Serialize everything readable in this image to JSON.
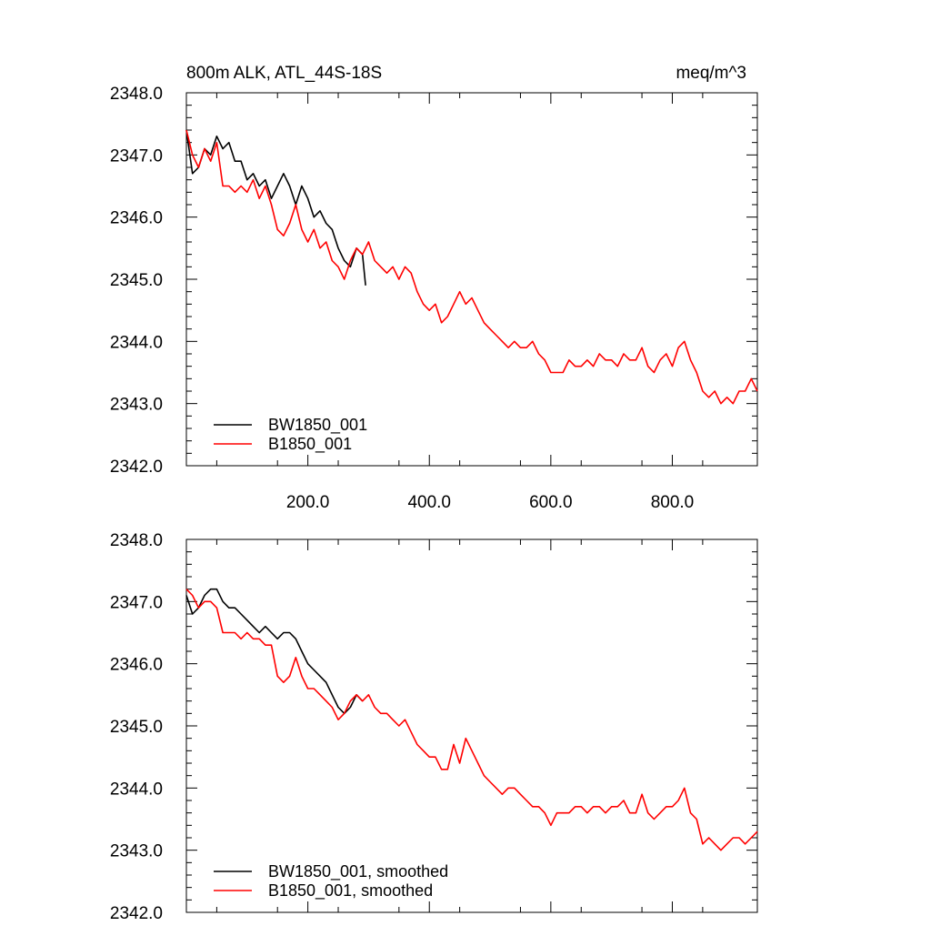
{
  "chart_data": [
    {
      "type": "line",
      "title": "800m ALK, ATL_44S-18S",
      "units": "meq/m^3",
      "xlim": [
        0,
        940
      ],
      "ylim": [
        2342.0,
        2348.0
      ],
      "x_ticks": [
        200,
        400,
        600,
        800
      ],
      "x_tick_labels": [
        "200.0",
        "400.0",
        "600.0",
        "800.0"
      ],
      "y_ticks": [
        2342,
        2343,
        2344,
        2345,
        2346,
        2347,
        2348
      ],
      "y_tick_labels": [
        "2342.0",
        "2343.0",
        "2344.0",
        "2345.0",
        "2346.0",
        "2347.0",
        "2348.0"
      ],
      "grid": false,
      "legend_position": "bottom-left",
      "series": [
        {
          "name": "BW1850_001",
          "color": "#000000",
          "x": [
            0,
            10,
            20,
            30,
            40,
            50,
            60,
            70,
            80,
            90,
            100,
            110,
            120,
            130,
            140,
            150,
            160,
            170,
            180,
            190,
            200,
            210,
            220,
            230,
            240,
            250,
            260,
            270,
            280,
            290,
            295
          ],
          "y": [
            2347.4,
            2346.7,
            2346.8,
            2347.1,
            2347.0,
            2347.3,
            2347.1,
            2347.2,
            2346.9,
            2346.9,
            2346.6,
            2346.7,
            2346.5,
            2346.6,
            2346.3,
            2346.5,
            2346.7,
            2346.5,
            2346.2,
            2346.5,
            2346.3,
            2346.0,
            2346.1,
            2345.9,
            2345.8,
            2345.5,
            2345.3,
            2345.2,
            2345.5,
            2345.4,
            2344.9
          ]
        },
        {
          "name": "B1850_001",
          "color": "#ff0000",
          "x": [
            0,
            10,
            20,
            30,
            40,
            50,
            60,
            70,
            80,
            90,
            100,
            110,
            120,
            130,
            140,
            150,
            160,
            170,
            180,
            190,
            200,
            210,
            220,
            230,
            240,
            250,
            260,
            270,
            280,
            290,
            300,
            310,
            320,
            330,
            340,
            350,
            360,
            370,
            380,
            390,
            400,
            410,
            420,
            430,
            440,
            450,
            460,
            470,
            480,
            490,
            500,
            510,
            520,
            530,
            540,
            550,
            560,
            570,
            580,
            590,
            600,
            610,
            620,
            630,
            640,
            650,
            660,
            670,
            680,
            690,
            700,
            710,
            720,
            730,
            740,
            750,
            760,
            770,
            780,
            790,
            800,
            810,
            820,
            830,
            840,
            850,
            860,
            870,
            880,
            890,
            900,
            910,
            920,
            930,
            940
          ],
          "y": [
            2347.4,
            2347.0,
            2346.8,
            2347.1,
            2346.9,
            2347.2,
            2346.5,
            2346.5,
            2346.4,
            2346.5,
            2346.4,
            2346.6,
            2346.3,
            2346.5,
            2346.2,
            2345.8,
            2345.7,
            2345.9,
            2346.2,
            2345.8,
            2345.6,
            2345.8,
            2345.5,
            2345.6,
            2345.3,
            2345.2,
            2345.0,
            2345.3,
            2345.5,
            2345.4,
            2345.6,
            2345.3,
            2345.2,
            2345.1,
            2345.2,
            2345.0,
            2345.2,
            2345.1,
            2344.8,
            2344.6,
            2344.5,
            2344.6,
            2344.3,
            2344.4,
            2344.6,
            2344.8,
            2344.6,
            2344.7,
            2344.5,
            2344.3,
            2344.2,
            2344.1,
            2344.0,
            2343.9,
            2344.0,
            2343.9,
            2343.9,
            2344.0,
            2343.8,
            2343.7,
            2343.5,
            2343.5,
            2343.5,
            2343.7,
            2343.6,
            2343.6,
            2343.7,
            2343.6,
            2343.8,
            2343.7,
            2343.7,
            2343.6,
            2343.8,
            2343.7,
            2343.7,
            2343.9,
            2343.6,
            2343.5,
            2343.7,
            2343.8,
            2343.6,
            2343.9,
            2344.0,
            2343.7,
            2343.5,
            2343.2,
            2343.1,
            2343.2,
            2343.0,
            2343.1,
            2343.0,
            2343.2,
            2343.2,
            2343.4,
            2343.2
          ]
        }
      ]
    },
    {
      "type": "line",
      "title": "",
      "xlim": [
        0,
        940
      ],
      "ylim": [
        2342.0,
        2348.0
      ],
      "x_ticks": [
        200,
        400,
        600,
        800
      ],
      "x_tick_labels": [],
      "y_ticks": [
        2342,
        2343,
        2344,
        2345,
        2346,
        2347,
        2348
      ],
      "y_tick_labels": [
        "2342.0",
        "2343.0",
        "2344.0",
        "2345.0",
        "2346.0",
        "2347.0",
        "2348.0"
      ],
      "grid": false,
      "legend_position": "bottom-left",
      "series": [
        {
          "name": "BW1850_001, smoothed",
          "color": "#000000",
          "x": [
            0,
            10,
            20,
            30,
            40,
            50,
            60,
            70,
            80,
            90,
            100,
            110,
            120,
            130,
            140,
            150,
            160,
            170,
            180,
            190,
            200,
            210,
            220,
            230,
            240,
            250,
            260,
            270,
            280,
            290
          ],
          "y": [
            2347.1,
            2346.8,
            2346.9,
            2347.1,
            2347.2,
            2347.2,
            2347.0,
            2346.9,
            2346.9,
            2346.8,
            2346.7,
            2346.6,
            2346.5,
            2346.6,
            2346.5,
            2346.4,
            2346.5,
            2346.5,
            2346.4,
            2346.2,
            2346.0,
            2345.9,
            2345.8,
            2345.7,
            2345.5,
            2345.3,
            2345.2,
            2345.3,
            2345.5,
            2345.4
          ]
        },
        {
          "name": "B1850_001, smoothed",
          "color": "#ff0000",
          "x": [
            0,
            10,
            20,
            30,
            40,
            50,
            60,
            70,
            80,
            90,
            100,
            110,
            120,
            130,
            140,
            150,
            160,
            170,
            180,
            190,
            200,
            210,
            220,
            230,
            240,
            250,
            260,
            270,
            280,
            290,
            300,
            310,
            320,
            330,
            340,
            350,
            360,
            370,
            380,
            390,
            400,
            410,
            420,
            430,
            440,
            450,
            460,
            470,
            480,
            490,
            500,
            510,
            520,
            530,
            540,
            550,
            560,
            570,
            580,
            590,
            600,
            610,
            620,
            630,
            640,
            650,
            660,
            670,
            680,
            690,
            700,
            710,
            720,
            730,
            740,
            750,
            760,
            770,
            780,
            790,
            800,
            810,
            820,
            830,
            840,
            850,
            860,
            870,
            880,
            890,
            900,
            910,
            920,
            930,
            940
          ],
          "y": [
            2347.2,
            2347.1,
            2346.9,
            2347.0,
            2347.0,
            2346.9,
            2346.5,
            2346.5,
            2346.5,
            2346.4,
            2346.5,
            2346.4,
            2346.4,
            2346.3,
            2346.3,
            2345.8,
            2345.7,
            2345.8,
            2346.1,
            2345.8,
            2345.6,
            2345.6,
            2345.5,
            2345.4,
            2345.3,
            2345.1,
            2345.2,
            2345.4,
            2345.5,
            2345.4,
            2345.5,
            2345.3,
            2345.2,
            2345.2,
            2345.1,
            2345.0,
            2345.1,
            2344.9,
            2344.7,
            2344.6,
            2344.5,
            2344.5,
            2344.3,
            2344.3,
            2344.7,
            2344.4,
            2344.8,
            2344.6,
            2344.4,
            2344.2,
            2344.1,
            2344.0,
            2343.9,
            2344.0,
            2344.0,
            2343.9,
            2343.8,
            2343.7,
            2343.7,
            2343.6,
            2343.4,
            2343.6,
            2343.6,
            2343.6,
            2343.7,
            2343.7,
            2343.6,
            2343.7,
            2343.7,
            2343.6,
            2343.7,
            2343.7,
            2343.8,
            2343.6,
            2343.6,
            2343.9,
            2343.6,
            2343.5,
            2343.6,
            2343.7,
            2343.7,
            2343.8,
            2344.0,
            2343.6,
            2343.5,
            2343.1,
            2343.2,
            2343.1,
            2343.0,
            2343.1,
            2343.2,
            2343.2,
            2343.1,
            2343.2,
            2343.3
          ]
        }
      ]
    }
  ]
}
